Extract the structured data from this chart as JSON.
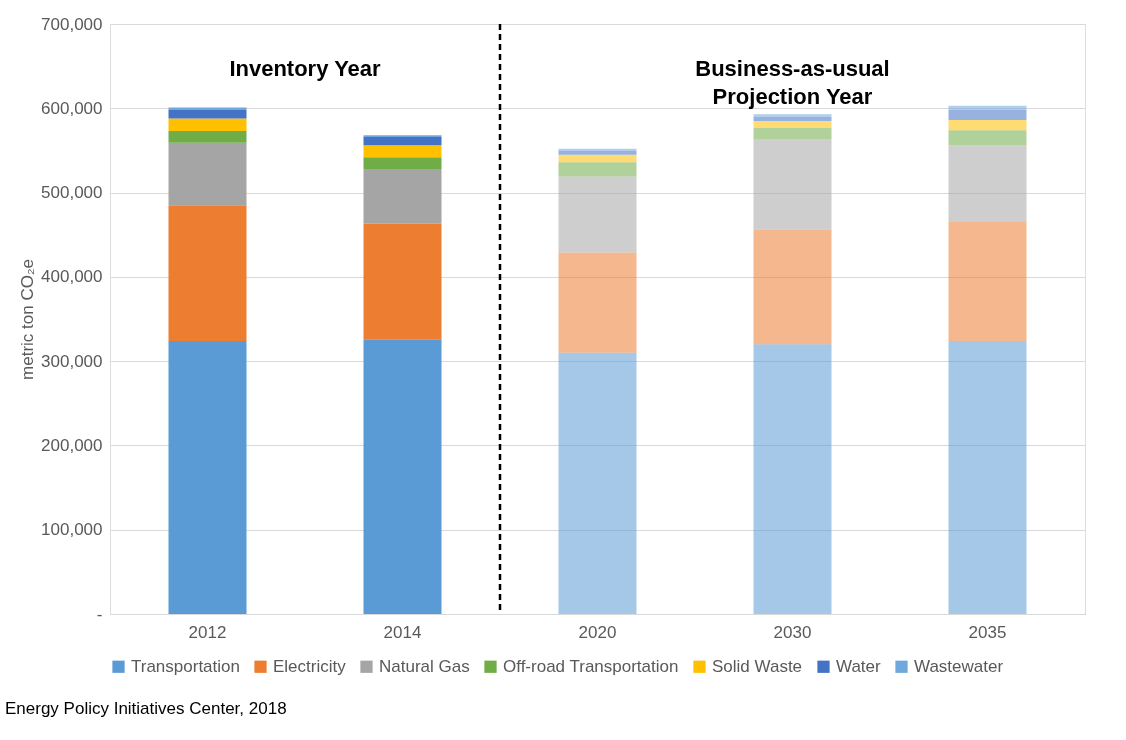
{
  "chart_data": {
    "type": "bar",
    "stacked": true,
    "ylabel": "metric ton CO₂e",
    "categories": [
      "2012",
      "2014",
      "2020",
      "2030",
      "2035"
    ],
    "series": [
      {
        "name": "Transportation",
        "color": "#5b9bd5",
        "values": [
          324000,
          326000,
          310000,
          320000,
          324000
        ]
      },
      {
        "name": "Electricity",
        "color": "#ed7d31",
        "values": [
          161000,
          137000,
          119000,
          136000,
          141000
        ]
      },
      {
        "name": "Natural Gas",
        "color": "#a5a5a5",
        "values": [
          74000,
          65000,
          90000,
          107000,
          91000
        ]
      },
      {
        "name": "Off-road Transportation",
        "color": "#70ad47",
        "values": [
          14000,
          14000,
          17000,
          14000,
          18000
        ]
      },
      {
        "name": "Solid Waste",
        "color": "#ffc000",
        "values": [
          15000,
          14000,
          9000,
          8000,
          12000
        ]
      },
      {
        "name": "Water",
        "color": "#4472c4",
        "values": [
          10000,
          10000,
          5000,
          5000,
          12000
        ]
      },
      {
        "name": "Wastewater",
        "color": "#6fa8dc",
        "values": [
          3000,
          2000,
          2000,
          3000,
          5000
        ]
      }
    ],
    "ylim": [
      0,
      700000
    ],
    "yticks": [
      {
        "value": 0,
        "label": "-"
      },
      {
        "value": 100000,
        "label": "100,000"
      },
      {
        "value": 200000,
        "label": "200,000"
      },
      {
        "value": 300000,
        "label": "300,000"
      },
      {
        "value": 400000,
        "label": "400,000"
      },
      {
        "value": 500000,
        "label": "500,000"
      },
      {
        "value": 600000,
        "label": "600,000"
      },
      {
        "value": 700000,
        "label": "700,000"
      }
    ],
    "grid": "y",
    "legend": "bottom",
    "ref_lines": [
      {
        "axis": "x",
        "value": "2020",
        "color": "#000000",
        "line_style": "dashed"
      }
    ],
    "annotations": [
      "Inventory Year",
      "Business-as-usual\nProjection Year",
      "Energy Policy Initiatives Center, 2018"
    ]
  }
}
